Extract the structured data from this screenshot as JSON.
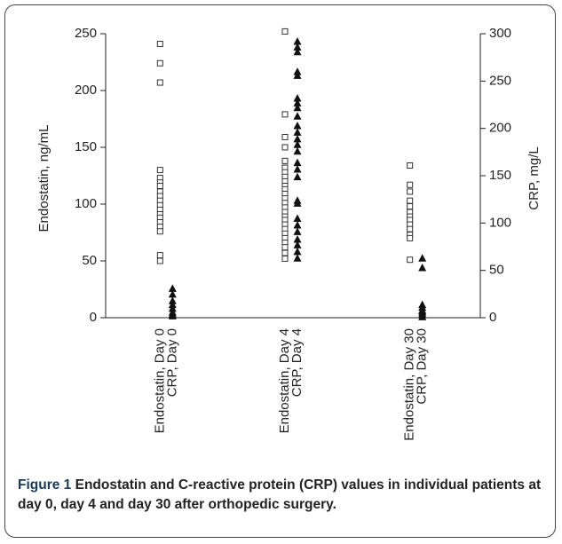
{
  "chart_data": {
    "type": "strip",
    "y_label": "Endostatin, ng/mL",
    "y2_label": "CRP, mg/L",
    "ylim": [
      0,
      250
    ],
    "yticks": [
      0,
      50,
      100,
      150,
      200,
      250
    ],
    "y2lim": [
      0,
      300
    ],
    "y2ticks": [
      0,
      50,
      100,
      150,
      200,
      250,
      300
    ],
    "groups": [
      {
        "category": "Endostatin, Day 0",
        "axis": "y",
        "marker": "square",
        "values": [
          241,
          224,
          207,
          130,
          123,
          119,
          116,
          111,
          107,
          103,
          99,
          95,
          91,
          88,
          84,
          80,
          76,
          55,
          50
        ]
      },
      {
        "category": "CRP, Day 0",
        "axis": "y2",
        "marker": "triangle",
        "values": [
          31,
          25,
          18,
          14,
          10,
          6,
          4,
          2
        ]
      },
      {
        "category": "Endostatin, Day 4",
        "axis": "y",
        "marker": "square",
        "values": [
          252,
          179,
          159,
          150,
          138,
          132,
          128,
          124,
          120,
          116,
          113,
          109,
          105,
          101,
          97,
          93,
          89,
          86,
          82,
          78,
          74,
          70,
          66,
          62,
          57,
          52
        ]
      },
      {
        "category": "CRP, Day 4",
        "axis": "y2",
        "marker": "triangle",
        "values": [
          292,
          286,
          281,
          260,
          256,
          232,
          227,
          222,
          213,
          203,
          196,
          189,
          183,
          176,
          164,
          157,
          149,
          124,
          121,
          105,
          98,
          91,
          83,
          77,
          70,
          63
        ]
      },
      {
        "category": "Endostatin, Day 30",
        "axis": "y",
        "marker": "square",
        "values": [
          134,
          117,
          111,
          103,
          98,
          93,
          89,
          86,
          82,
          78,
          73,
          70,
          51
        ]
      },
      {
        "category": "CRP, Day 30",
        "axis": "y2",
        "marker": "triangle",
        "values": [
          63,
          53,
          14,
          11,
          8,
          7,
          5,
          3,
          1
        ]
      }
    ],
    "caption_label": "Figure 1",
    "caption": "Endostatin and C-reactive protein (CRP) values in individual patients at day 0, day 4 and day 30 after orthopedic surgery."
  }
}
